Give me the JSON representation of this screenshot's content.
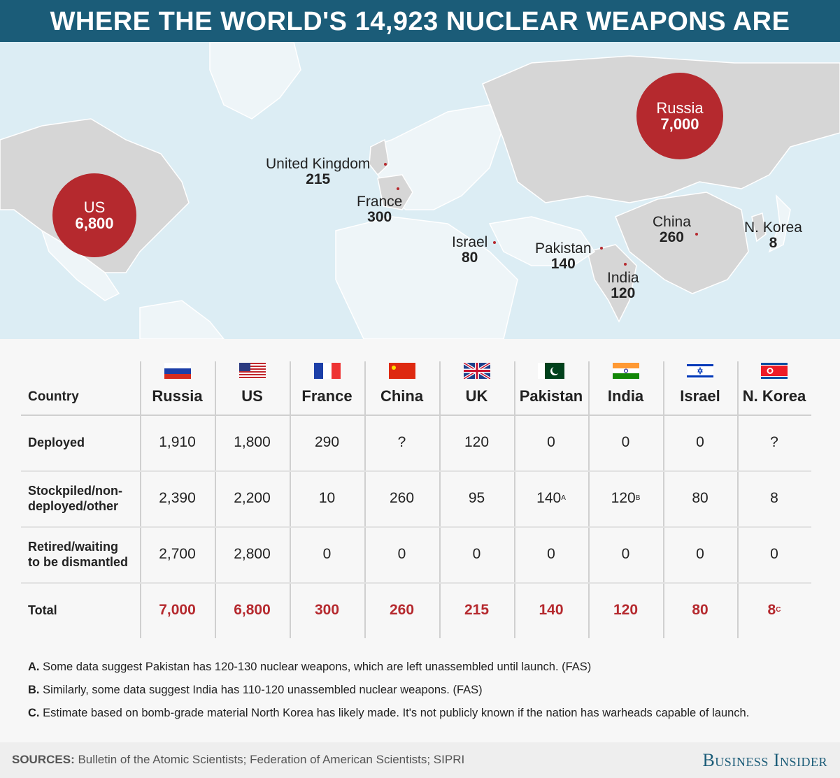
{
  "title": "WHERE THE WORLD'S 14,923 NUCLEAR WEAPONS ARE",
  "colors": {
    "header": "#1b5c78",
    "accent": "#b5292e",
    "ocean": "#dcedf4",
    "land": "#d6d6d6"
  },
  "map": {
    "bubbles": [
      {
        "name": "US",
        "value": "6,800"
      },
      {
        "name": "Russia",
        "value": "7,000"
      }
    ],
    "labels": [
      {
        "name": "United Kingdom",
        "value": "215"
      },
      {
        "name": "France",
        "value": "300"
      },
      {
        "name": "Israel",
        "value": "80"
      },
      {
        "name": "Pakistan",
        "value": "140"
      },
      {
        "name": "India",
        "value": "120"
      },
      {
        "name": "China",
        "value": "260"
      },
      {
        "name": "N. Korea",
        "value": "8"
      }
    ]
  },
  "chart_data": {
    "type": "table",
    "header_label": "Country",
    "columns": [
      "Russia",
      "US",
      "France",
      "China",
      "UK",
      "Pakistan",
      "India",
      "Israel",
      "N. Korea"
    ],
    "flags": [
      "russia-flag",
      "us-flag",
      "france-flag",
      "china-flag",
      "uk-flag",
      "pakistan-flag",
      "india-flag",
      "israel-flag",
      "north-korea-flag"
    ],
    "rows": [
      {
        "label": [
          "Deployed"
        ],
        "cells": [
          {
            "v": "1,910"
          },
          {
            "v": "1,800"
          },
          {
            "v": "290"
          },
          {
            "v": "?"
          },
          {
            "v": "120"
          },
          {
            "v": "0"
          },
          {
            "v": "0"
          },
          {
            "v": "0"
          },
          {
            "v": "?"
          }
        ]
      },
      {
        "label": [
          "Stockpiled/non-",
          "deployed/other"
        ],
        "cells": [
          {
            "v": "2,390"
          },
          {
            "v": "2,200"
          },
          {
            "v": "10"
          },
          {
            "v": "260"
          },
          {
            "v": "95"
          },
          {
            "v": "140",
            "sup": "A"
          },
          {
            "v": "120",
            "sup": "B"
          },
          {
            "v": "80"
          },
          {
            "v": "8"
          }
        ]
      },
      {
        "label": [
          "Retired/waiting",
          "to be dismantled"
        ],
        "cells": [
          {
            "v": "2,700"
          },
          {
            "v": "2,800"
          },
          {
            "v": "0"
          },
          {
            "v": "0"
          },
          {
            "v": "0"
          },
          {
            "v": "0"
          },
          {
            "v": "0"
          },
          {
            "v": "0"
          },
          {
            "v": "0"
          }
        ]
      },
      {
        "label": [
          "Total"
        ],
        "total": true,
        "cells": [
          {
            "v": "7,000"
          },
          {
            "v": "6,800"
          },
          {
            "v": "300"
          },
          {
            "v": "260"
          },
          {
            "v": "215"
          },
          {
            "v": "140"
          },
          {
            "v": "120"
          },
          {
            "v": "80"
          },
          {
            "v": "8",
            "sup": "C"
          }
        ]
      }
    ]
  },
  "notes": [
    {
      "key": "A.",
      "text": " Some data suggest Pakistan has 120-130 nuclear weapons, which are left unassembled until launch. (FAS)"
    },
    {
      "key": "B.",
      "text": " Similarly, some data suggest India has 110-120 unassembled nuclear weapons. (FAS)"
    },
    {
      "key": "C.",
      "text": " Estimate based on bomb-grade material North Korea has likely made. It's not publicly known if the nation has warheads capable of launch."
    }
  ],
  "footer": {
    "sources_label": "SOURCES:",
    "sources_text": " Bulletin of the Atomic Scientists; Federation of American Scientists; SIPRI",
    "brand": "Business Insider"
  }
}
